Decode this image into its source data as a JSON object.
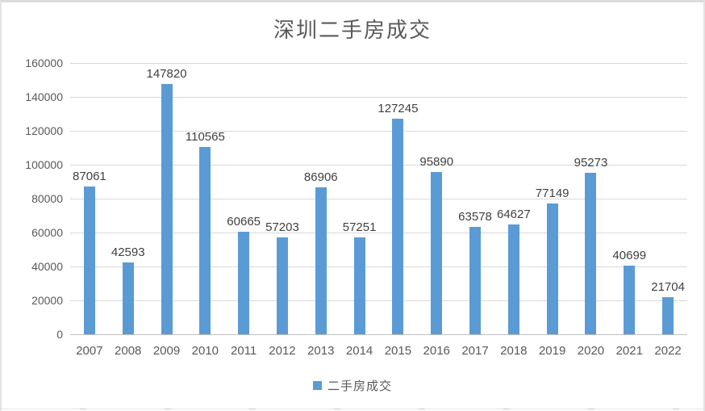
{
  "chart_data": {
    "type": "bar",
    "title": "深圳二手房成交",
    "categories": [
      "2007",
      "2008",
      "2009",
      "2010",
      "2011",
      "2012",
      "2013",
      "2014",
      "2015",
      "2016",
      "2017",
      "2018",
      "2019",
      "2020",
      "2021",
      "2022"
    ],
    "values": [
      87061,
      42593,
      147820,
      110565,
      60665,
      57203,
      86906,
      57251,
      127245,
      95890,
      63578,
      64627,
      77149,
      95273,
      40699,
      21704
    ],
    "series_name": "二手房成交",
    "legend": {
      "label": "二手房成交",
      "position": "bottom"
    },
    "xlabel": "",
    "ylabel": "",
    "ylim": [
      0,
      160000
    ],
    "yticks": [
      0,
      20000,
      40000,
      60000,
      80000,
      100000,
      120000,
      140000,
      160000
    ],
    "grid": true,
    "colors": {
      "bar": "#5b9bd5",
      "title_text": "#595959",
      "axis_text": "#595959",
      "data_label_text": "#404040",
      "gridline": "#d9d9d9",
      "axis_line": "#bfbfbf"
    }
  }
}
